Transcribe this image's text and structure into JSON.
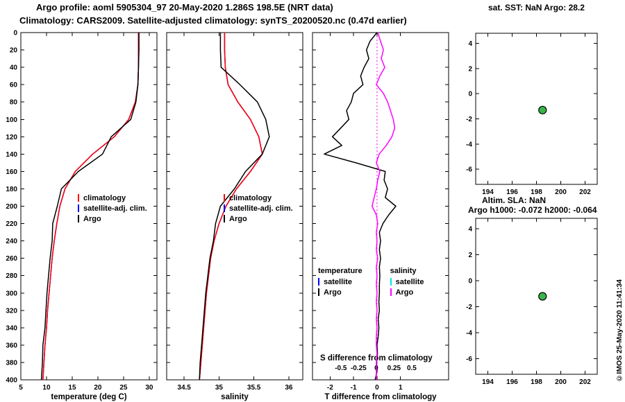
{
  "header": {
    "title1": "Argo profile: aoml 5905304_97 20-May-2020 1.286S 198.5E (NRT data)",
    "title2": "Climatology: CARS2009. Satellite-adjusted climatology: synTS_20200520.nc (0.47d earlier)"
  },
  "right_panel": {
    "sst_title": "sat. SST: NaN Argo: 28.2",
    "sla_line1": "Altim. SLA: NaN",
    "sla_line2": "Argo h1000: -0.072 h2000: -0.064"
  },
  "watermark": "©IMOS 25-May-2020 11:41:34",
  "colors": {
    "climatology": "#ff0000",
    "satellite_adjusted": "#0000ff",
    "argo": "#000000",
    "salinity_satellite": "#00e5e5",
    "salinity_argo": "#ff00ff",
    "position_marker": "#3ab54a"
  },
  "legends": {
    "profile": [
      {
        "label": "climatology",
        "color": "#ff0000"
      },
      {
        "label": "satellite-adj. clim.",
        "color": "#0000ff"
      },
      {
        "label": "Argo",
        "color": "#000000"
      }
    ],
    "difference": {
      "temperature": {
        "header": "temperature",
        "items": [
          {
            "label": "satellite",
            "color": "#0000ff"
          },
          {
            "label": "Argo",
            "color": "#000000"
          }
        ]
      },
      "salinity": {
        "header": "salinity",
        "items": [
          {
            "label": "satellite",
            "color": "#00e5e5"
          },
          {
            "label": "Argo",
            "color": "#ff00ff"
          }
        ]
      }
    }
  },
  "chart_data": [
    {
      "id": "temperature_profile",
      "type": "line",
      "xlabel": "temperature (deg C)",
      "xlim": [
        5,
        31.5
      ],
      "xticks": [
        5,
        10,
        15,
        20,
        25,
        30
      ],
      "ylim": [
        0,
        400
      ],
      "y_down": true,
      "yticks": [
        0,
        20,
        40,
        60,
        80,
        100,
        120,
        140,
        160,
        180,
        200,
        220,
        240,
        260,
        280,
        300,
        320,
        340,
        360,
        380,
        400
      ],
      "depths": [
        0,
        20,
        40,
        60,
        80,
        100,
        120,
        140,
        160,
        180,
        200,
        220,
        240,
        260,
        280,
        300,
        320,
        340,
        360,
        380,
        400
      ],
      "series": [
        {
          "name": "satellite-adj-climatology",
          "color": "#0000ff",
          "values": [
            27.9,
            27.9,
            27.9,
            27.8,
            27.3,
            26.0,
            23.2,
            19.0,
            15.6,
            13.6,
            12.6,
            12.0,
            11.5,
            11.1,
            10.8,
            10.5,
            10.2,
            10.0,
            9.7,
            9.5,
            9.3
          ]
        },
        {
          "name": "climatology",
          "color": "#ff0000",
          "values": [
            27.9,
            27.9,
            27.9,
            27.8,
            27.3,
            26.0,
            23.2,
            19.0,
            15.6,
            13.6,
            12.6,
            12.0,
            11.5,
            11.1,
            10.8,
            10.5,
            10.2,
            10.0,
            9.7,
            9.5,
            9.3
          ]
        },
        {
          "name": "argo-temperature",
          "color": "#000000",
          "values": [
            28.0,
            28.0,
            27.9,
            27.8,
            27.4,
            26.4,
            22.6,
            20.9,
            16.2,
            12.9,
            12.1,
            11.2,
            11.1,
            10.7,
            10.4,
            10.1,
            9.9,
            9.7,
            9.3,
            9.2,
            9.0
          ]
        }
      ]
    },
    {
      "id": "salinity_profile",
      "type": "line",
      "xlabel": "salinity",
      "xlim": [
        34.25,
        36.2
      ],
      "xticks": [
        34.5,
        35,
        35.5,
        36
      ],
      "ylim": [
        0,
        400
      ],
      "y_down": true,
      "yticks": [
        0,
        20,
        40,
        60,
        80,
        100,
        120,
        140,
        160,
        180,
        200,
        220,
        240,
        260,
        280,
        300,
        320,
        340,
        360,
        380,
        400
      ],
      "depths": [
        0,
        20,
        40,
        60,
        80,
        100,
        120,
        140,
        160,
        180,
        200,
        220,
        240,
        260,
        280,
        300,
        320,
        340,
        360,
        380,
        400
      ],
      "series": [
        {
          "name": "satellite-adj-climatology",
          "color": "#0000ff",
          "values": [
            35.08,
            35.08,
            35.09,
            35.13,
            35.27,
            35.45,
            35.57,
            35.62,
            35.45,
            35.25,
            35.1,
            35.0,
            34.93,
            34.88,
            34.85,
            34.82,
            34.8,
            34.78,
            34.76,
            34.74,
            34.72
          ]
        },
        {
          "name": "climatology",
          "color": "#ff0000",
          "values": [
            35.08,
            35.08,
            35.09,
            35.13,
            35.27,
            35.45,
            35.57,
            35.62,
            35.45,
            35.25,
            35.1,
            35.0,
            34.93,
            34.88,
            34.85,
            34.82,
            34.8,
            34.78,
            34.76,
            34.74,
            34.72
          ]
        },
        {
          "name": "argo-salinity",
          "color": "#000000",
          "values": [
            35.02,
            35.02,
            35.03,
            35.3,
            35.55,
            35.67,
            35.72,
            35.62,
            35.38,
            35.22,
            35.02,
            34.95,
            34.92,
            34.87,
            34.84,
            34.81,
            34.79,
            34.77,
            34.75,
            34.73,
            34.72
          ]
        }
      ]
    },
    {
      "id": "difference_profile",
      "type": "line",
      "xlabel": "T difference from climatology",
      "x_t": {
        "lim": [
          -2.75,
          3.05
        ],
        "ticks": [
          -2,
          -1,
          0,
          1
        ]
      },
      "x_s": {
        "label": "S difference from climatology",
        "lim": [
          -0.9,
          1.02
        ],
        "ticks": [
          -0.5,
          -0.25,
          0,
          0.25,
          0.5
        ]
      },
      "ylim": [
        0,
        400
      ],
      "y_down": true,
      "yticks": [
        0,
        20,
        40,
        60,
        80,
        100,
        120,
        140,
        160,
        180,
        200,
        220,
        240,
        260,
        280,
        300,
        320,
        340,
        360,
        380,
        400
      ],
      "depths": [
        0,
        10,
        20,
        30,
        40,
        50,
        60,
        70,
        80,
        90,
        100,
        110,
        120,
        130,
        140,
        150,
        160,
        170,
        180,
        190,
        200,
        210,
        220,
        230,
        240,
        250,
        260,
        270,
        280,
        290,
        300,
        310,
        320,
        330,
        340,
        350,
        360,
        370,
        380,
        390,
        400
      ],
      "zero_line": {
        "color": "#ff00ff"
      },
      "series": [
        {
          "name": "argo-t-difference",
          "axis": "t",
          "color": "#000000",
          "values": [
            0.0,
            -0.3,
            -0.45,
            -0.35,
            -0.55,
            -0.7,
            -0.6,
            -1.0,
            -1.1,
            -1.3,
            -1.2,
            -1.55,
            -1.9,
            -1.5,
            -2.25,
            -0.9,
            0.35,
            0.3,
            0.45,
            0.35,
            0.8,
            0.5,
            0.25,
            0.1,
            0.15,
            0.1,
            0.15,
            0.1,
            0.12,
            0.1,
            0.1,
            0.08,
            0.1,
            0.05,
            0.08,
            0.05,
            0.0,
            0.02,
            -0.02,
            0.0,
            -0.08
          ]
        },
        {
          "name": "argo-s-difference",
          "axis": "s",
          "color": "#ff00ff",
          "values": [
            0.02,
            0.06,
            0.1,
            0.07,
            0.12,
            0.05,
            0.0,
            0.1,
            0.16,
            0.2,
            0.24,
            0.26,
            0.22,
            0.14,
            0.04,
            0.0,
            0.05,
            0.02,
            0.0,
            -0.03,
            -0.06,
            0.0,
            0.02,
            0.0,
            0.01,
            0.0,
            0.02,
            0.0,
            0.01,
            0.0,
            0.01,
            0.0,
            0.01,
            0.0,
            0.01,
            0.0,
            0.0,
            0.01,
            0.0,
            0.0,
            0.0
          ]
        }
      ]
    },
    {
      "id": "sst_position",
      "type": "scatter",
      "xlim": [
        193,
        203
      ],
      "xticks": [
        194,
        196,
        198,
        200,
        202
      ],
      "ylim": [
        -7.2,
        4.8
      ],
      "yticks": [
        -6,
        -4,
        -2,
        0,
        2,
        4
      ],
      "points": [
        {
          "x": 198.5,
          "y": -1.3,
          "fill": "#3ab54a"
        }
      ]
    },
    {
      "id": "sla_position",
      "type": "scatter",
      "xlim": [
        193,
        203
      ],
      "xticks": [
        194,
        196,
        198,
        200,
        202
      ],
      "ylim": [
        -7.2,
        4.8
      ],
      "yticks": [
        -6,
        -4,
        -2,
        0,
        2,
        4
      ],
      "points": [
        {
          "x": 198.5,
          "y": -1.2,
          "fill": "#3ab54a"
        }
      ]
    }
  ]
}
